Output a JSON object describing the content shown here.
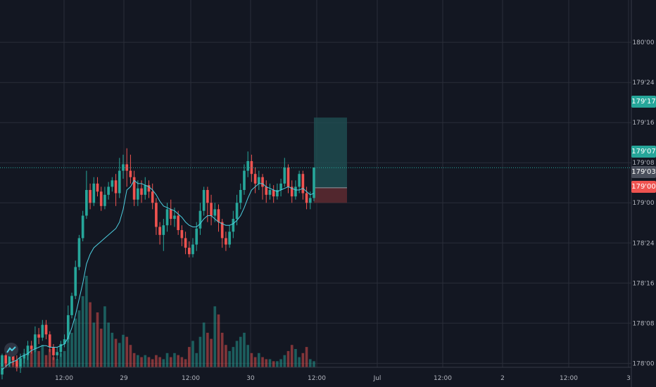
{
  "colors": {
    "background": "#131722",
    "grid": "#2a2e39",
    "up": "#26a69a",
    "down": "#ef5350",
    "ma_line": "#4dd0e1",
    "axis_text": "#b2b5be",
    "target_zone": "#1f4f52",
    "stop_zone": "#5e2a30"
  },
  "price_axis": {
    "ticks": [
      "180'00",
      "179'24",
      "179'16",
      "179'08",
      "179'00",
      "178'24",
      "178'16",
      "178'08",
      "178'00"
    ]
  },
  "time_axis": {
    "ticks": [
      "12:00",
      "29",
      "12:00",
      "30",
      "12:00",
      "Jul",
      "12:00",
      "2",
      "12:00",
      "3"
    ]
  },
  "price_labels": {
    "target": "179'17",
    "last": "179'07",
    "entry": "179'03",
    "stop": "179'00"
  },
  "logo_icon": "tradingview-logo-icon",
  "chart_data": {
    "type": "candlestick",
    "y_unit": "price in 32nds (e.g. 179'07 = 179 + 7/32)",
    "ylim": [
      177.94,
      180.22
    ],
    "candles": [
      [
        177.93,
        178.05,
        177.9,
        178.06
      ],
      [
        178.05,
        178.0,
        177.97,
        178.08
      ],
      [
        178.0,
        178.07,
        177.98,
        178.09
      ],
      [
        178.07,
        178.02,
        177.99,
        178.09
      ],
      [
        178.02,
        177.97,
        177.95,
        178.05
      ],
      [
        177.97,
        178.03,
        177.94,
        178.06
      ],
      [
        178.03,
        178.05,
        178.0,
        178.09
      ],
      [
        178.05,
        178.11,
        178.02,
        178.14
      ],
      [
        178.11,
        178.09,
        178.06,
        178.14
      ],
      [
        178.09,
        178.18,
        178.07,
        178.23
      ],
      [
        178.18,
        178.16,
        178.12,
        178.22
      ],
      [
        178.16,
        178.24,
        178.14,
        178.27
      ],
      [
        178.24,
        178.18,
        178.15,
        178.27
      ],
      [
        178.18,
        178.1,
        178.07,
        178.2
      ],
      [
        178.1,
        178.05,
        178.02,
        178.12
      ],
      [
        178.05,
        178.07,
        178.02,
        178.1
      ],
      [
        178.07,
        178.12,
        178.04,
        178.14
      ],
      [
        178.12,
        178.15,
        178.1,
        178.18
      ],
      [
        178.15,
        178.3,
        178.13,
        178.36
      ],
      [
        178.3,
        178.42,
        178.28,
        178.44
      ],
      [
        178.42,
        178.6,
        178.4,
        178.64
      ],
      [
        178.6,
        178.78,
        178.58,
        178.8
      ],
      [
        178.78,
        178.92,
        178.76,
        178.95
      ],
      [
        178.92,
        179.08,
        178.9,
        179.2
      ],
      [
        179.08,
        179.0,
        178.96,
        179.12
      ],
      [
        179.0,
        179.12,
        178.98,
        179.16
      ],
      [
        179.12,
        179.07,
        179.04,
        179.16
      ],
      [
        179.07,
        178.98,
        178.95,
        179.1
      ],
      [
        178.98,
        179.05,
        178.96,
        179.1
      ],
      [
        179.05,
        179.1,
        179.02,
        179.13
      ],
      [
        179.1,
        179.14,
        179.07,
        179.16
      ],
      [
        179.14,
        179.06,
        178.98,
        179.18
      ],
      [
        179.06,
        179.2,
        179.03,
        179.28
      ],
      [
        179.2,
        179.24,
        179.15,
        179.3
      ],
      [
        179.24,
        179.2,
        179.1,
        179.34
      ],
      [
        179.2,
        179.16,
        179.12,
        179.3
      ],
      [
        179.16,
        179.02,
        178.98,
        179.2
      ],
      [
        179.02,
        179.09,
        178.98,
        179.14
      ],
      [
        179.09,
        179.05,
        179.0,
        179.14
      ],
      [
        179.05,
        179.11,
        179.02,
        179.16
      ],
      [
        179.11,
        179.07,
        179.03,
        179.14
      ],
      [
        179.07,
        179.0,
        178.96,
        179.12
      ],
      [
        179.0,
        178.85,
        178.8,
        179.03
      ],
      [
        178.85,
        178.8,
        178.74,
        178.88
      ],
      [
        178.8,
        178.86,
        178.7,
        178.9
      ],
      [
        178.86,
        178.96,
        178.82,
        179.0
      ],
      [
        178.96,
        178.9,
        178.86,
        179.02
      ],
      [
        178.9,
        178.92,
        178.85,
        178.97
      ],
      [
        178.92,
        178.83,
        178.8,
        178.95
      ],
      [
        178.83,
        178.78,
        178.73,
        178.86
      ],
      [
        178.78,
        178.72,
        178.68,
        178.82
      ],
      [
        178.72,
        178.68,
        178.66,
        178.76
      ],
      [
        178.68,
        178.74,
        178.66,
        178.78
      ],
      [
        178.74,
        178.84,
        178.7,
        178.88
      ],
      [
        178.84,
        178.95,
        178.8,
        179.0
      ],
      [
        178.95,
        179.08,
        178.92,
        179.1
      ],
      [
        179.08,
        179.0,
        178.88,
        179.1
      ],
      [
        179.0,
        178.92,
        178.86,
        179.05
      ],
      [
        178.92,
        178.96,
        178.88,
        179.0
      ],
      [
        178.96,
        178.88,
        178.82,
        178.99
      ],
      [
        178.88,
        178.78,
        178.72,
        178.9
      ],
      [
        178.78,
        178.74,
        178.7,
        178.82
      ],
      [
        178.74,
        178.82,
        178.72,
        178.86
      ],
      [
        178.82,
        178.9,
        178.78,
        178.95
      ],
      [
        178.9,
        179.0,
        178.86,
        179.05
      ],
      [
        179.0,
        179.08,
        178.96,
        179.12
      ],
      [
        179.08,
        179.2,
        179.05,
        179.24
      ],
      [
        179.2,
        179.26,
        179.16,
        179.32
      ],
      [
        179.26,
        179.18,
        179.13,
        179.3
      ],
      [
        179.18,
        179.12,
        179.06,
        179.22
      ],
      [
        179.12,
        179.16,
        179.08,
        179.2
      ],
      [
        179.16,
        179.1,
        179.02,
        179.18
      ],
      [
        179.1,
        179.05,
        179.0,
        179.14
      ],
      [
        179.05,
        179.08,
        179.02,
        179.12
      ],
      [
        179.08,
        179.04,
        179.0,
        179.11
      ],
      [
        179.04,
        179.08,
        179.02,
        179.12
      ],
      [
        179.08,
        179.12,
        179.04,
        179.15
      ],
      [
        179.12,
        179.22,
        179.1,
        179.28
      ],
      [
        179.22,
        179.1,
        179.06,
        179.24
      ],
      [
        179.1,
        179.04,
        179.0,
        179.14
      ],
      [
        179.04,
        179.1,
        179.02,
        179.14
      ],
      [
        179.1,
        179.18,
        179.06,
        179.2
      ],
      [
        179.18,
        179.06,
        179.02,
        179.2
      ],
      [
        179.06,
        179.0,
        178.96,
        179.1
      ],
      [
        179.0,
        179.03,
        178.96,
        179.07
      ],
      [
        179.03,
        179.22,
        179.01,
        179.22
      ]
    ],
    "volume": [
      4,
      8,
      6,
      9,
      5,
      10,
      14,
      12,
      20,
      24,
      16,
      22,
      12,
      18,
      10,
      8,
      14,
      16,
      28,
      34,
      48,
      56,
      70,
      90,
      64,
      44,
      54,
      38,
      60,
      44,
      34,
      28,
      24,
      32,
      30,
      22,
      14,
      12,
      10,
      12,
      10,
      8,
      12,
      10,
      8,
      14,
      10,
      14,
      12,
      10,
      8,
      20,
      26,
      14,
      30,
      44,
      34,
      28,
      60,
      52,
      34,
      22,
      16,
      20,
      26,
      30,
      34,
      22,
      14,
      10,
      14,
      10,
      8,
      8,
      6,
      6,
      8,
      12,
      16,
      22,
      18,
      10,
      14,
      20,
      8,
      6
    ],
    "moving_average": [
      177.96,
      177.98,
      178.0,
      178.01,
      178.02,
      178.04,
      178.05,
      178.06,
      178.08,
      178.09,
      178.1,
      178.11,
      178.11,
      178.1,
      178.1,
      178.1,
      178.11,
      178.12,
      178.16,
      178.22,
      178.3,
      178.4,
      178.5,
      178.62,
      178.68,
      178.72,
      178.74,
      178.76,
      178.78,
      178.8,
      178.82,
      178.84,
      178.88,
      178.96,
      179.08,
      179.1,
      179.14,
      179.12,
      179.12,
      179.11,
      179.1,
      179.08,
      179.05,
      179.01,
      178.98,
      178.97,
      178.96,
      178.95,
      178.93,
      178.91,
      178.88,
      178.86,
      178.85,
      178.85,
      178.87,
      178.9,
      178.92,
      178.92,
      178.9,
      178.88,
      178.87,
      178.86,
      178.86,
      178.87,
      178.89,
      178.92,
      178.97,
      179.03,
      179.08,
      179.1,
      179.12,
      179.12,
      179.1,
      179.09,
      179.08,
      179.07,
      179.08,
      179.09,
      179.1,
      179.09,
      179.08,
      179.08,
      179.09,
      179.07,
      179.05,
      179.06
    ],
    "position": {
      "target_price": "179'17",
      "entry_price": "179'03",
      "stop_price": "179'00"
    },
    "last_price": "179'07"
  }
}
